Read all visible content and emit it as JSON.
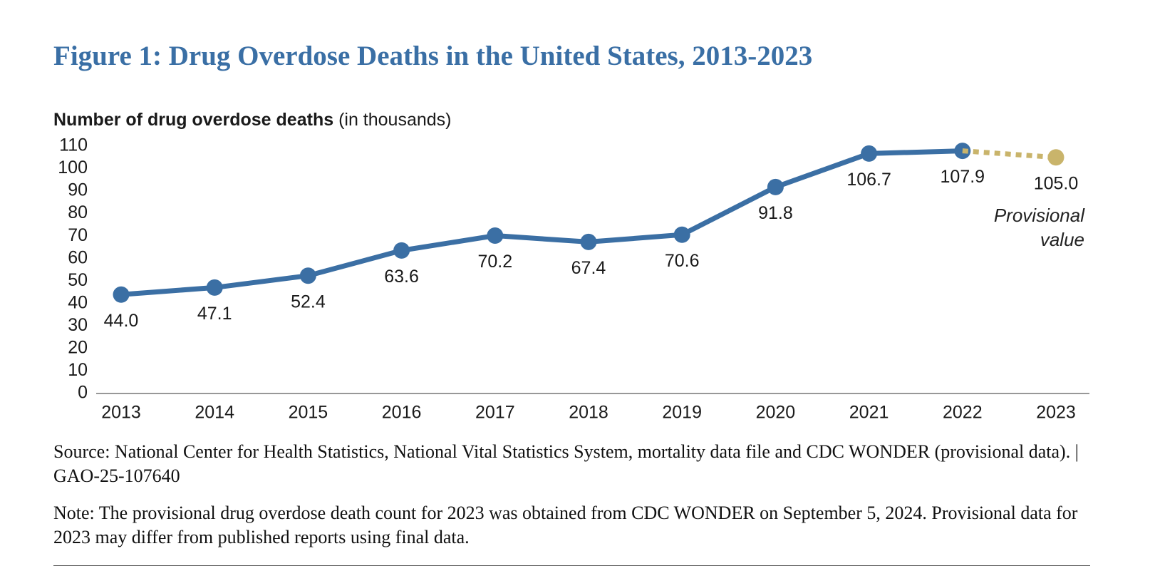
{
  "chart_data": {
    "type": "line",
    "title": "Figure 1: Drug Overdose Deaths in the United States, 2013-2023",
    "ylabel": "Number of drug overdose deaths",
    "ylabel_unit": "(in thousands)",
    "categories": [
      "2013",
      "2014",
      "2015",
      "2016",
      "2017",
      "2018",
      "2019",
      "2020",
      "2021",
      "2022",
      "2023"
    ],
    "series": [
      {
        "color": "#3b6fa4",
        "values": [
          44.0,
          47.1,
          52.4,
          63.6,
          70.2,
          67.4,
          70.6,
          91.8,
          106.7,
          107.9,
          null
        ],
        "value_labels": [
          "44.0",
          "47.1",
          "52.4",
          "63.6",
          "70.2",
          "67.4",
          "70.6",
          "91.8",
          "106.7",
          "107.9",
          null
        ]
      },
      {
        "color": "#c9b46b",
        "dashed": true,
        "values": [
          null,
          null,
          null,
          null,
          null,
          null,
          null,
          null,
          null,
          null,
          105.0
        ],
        "value_labels": [
          null,
          null,
          null,
          null,
          null,
          null,
          null,
          null,
          null,
          null,
          "105.0"
        ]
      }
    ],
    "annotation": "Provisional value",
    "ylim": [
      0,
      110
    ],
    "yticks": [
      0,
      10,
      20,
      30,
      40,
      50,
      60,
      70,
      80,
      90,
      100,
      110
    ],
    "grid": false,
    "source": "Source: National Center for Health Statistics, National Vital Statistics System, mortality data file and CDC WONDER (provisional data).  |  GAO-25-107640",
    "note": "Note: The provisional drug overdose death count for 2023 was obtained from CDC WONDER on September 5, 2024. Provisional data for 2023 may differ from published reports using final data."
  }
}
